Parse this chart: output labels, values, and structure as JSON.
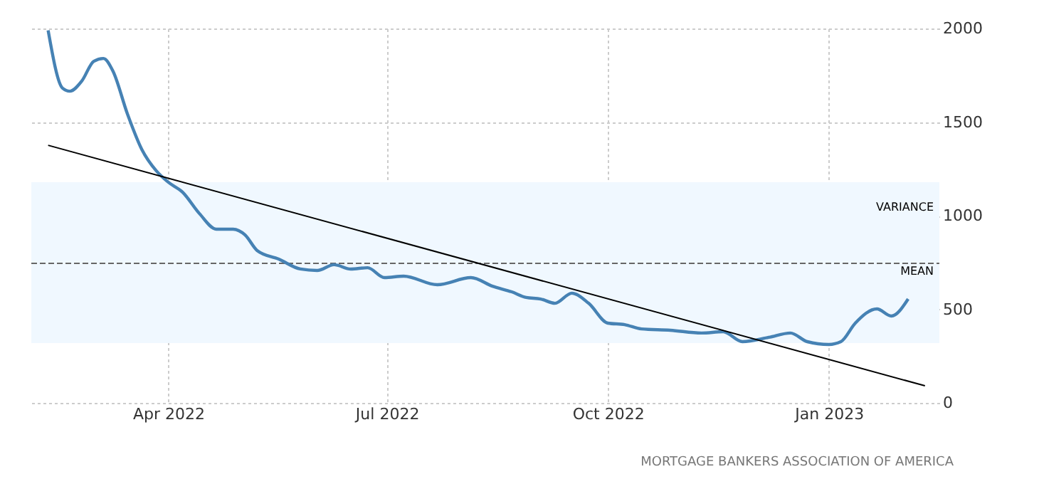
{
  "chart_data": {
    "type": "line",
    "annotations": [
      "MORTGAGE BANKERS ASSOCIATION OF AMERICA"
    ],
    "series": [
      {
        "color": "#4682b4",
        "x": [
          "2022-02-10",
          "2022-02-16",
          "2022-02-19",
          "2022-02-24",
          "2022-03-01",
          "2022-03-05",
          "2022-03-09",
          "2022-03-15",
          "2022-03-21",
          "2022-03-27",
          "2022-04-01",
          "2022-04-07",
          "2022-04-14",
          "2022-04-21",
          "2022-04-28",
          "2022-05-03",
          "2022-05-08",
          "2022-05-17",
          "2022-05-26",
          "2022-06-02",
          "2022-06-09",
          "2022-06-16",
          "2022-06-23",
          "2022-06-30",
          "2022-07-08",
          "2022-07-22",
          "2022-08-05",
          "2022-08-14",
          "2022-08-22",
          "2022-08-28",
          "2022-09-03",
          "2022-09-09",
          "2022-09-16",
          "2022-09-23",
          "2022-10-01",
          "2022-10-08",
          "2022-10-15",
          "2022-10-27",
          "2022-11-09",
          "2022-11-18",
          "2022-11-26",
          "2022-12-07",
          "2022-12-16",
          "2022-12-23",
          "2023-01-01",
          "2023-01-06",
          "2023-01-12",
          "2023-01-21",
          "2023-01-27",
          "2023-02-03"
        ],
        "values": [
          1990,
          1681,
          1665,
          1719,
          1825,
          1840,
          1772,
          1544,
          1354,
          1240,
          1179,
          1125,
          1011,
          928,
          928,
          897,
          814,
          768,
          715,
          707,
          738,
          715,
          722,
          669,
          677,
          631,
          669,
          623,
          593,
          563,
          555,
          532,
          586,
          532,
          426,
          418,
          395,
          388,
          373,
          380,
          327,
          350,
          373,
          327,
          312,
          327,
          426,
          502,
          464,
          555
        ]
      },
      {
        "color": "#000000",
        "x": [
          "2022-02-10",
          "2023-02-10"
        ],
        "values": [
          1376,
          91
        ]
      }
    ],
    "xlim": [
      "2022-02-03",
      "2023-02-16"
    ],
    "xticks": [
      {
        "value": "2022-04-01",
        "label": "Apr 2022"
      },
      {
        "value": "2022-07-01",
        "label": "Jul 2022"
      },
      {
        "value": "2022-10-01",
        "label": "Oct 2022"
      },
      {
        "value": "2023-01-01",
        "label": "Jan 2023"
      }
    ],
    "ylim": [
      0,
      2000
    ],
    "yticks": [
      0,
      500,
      1000,
      1500,
      2000
    ],
    "grid": true,
    "ref_lines": [
      {
        "axis": "y",
        "value": 745,
        "label": "MEAN",
        "color": "#666666",
        "line_style": "dashed"
      }
    ],
    "bands": [
      {
        "axis": "y",
        "from": 319,
        "to": 1179,
        "label": "VARIANCE",
        "color": "#f0f8ff"
      }
    ]
  }
}
